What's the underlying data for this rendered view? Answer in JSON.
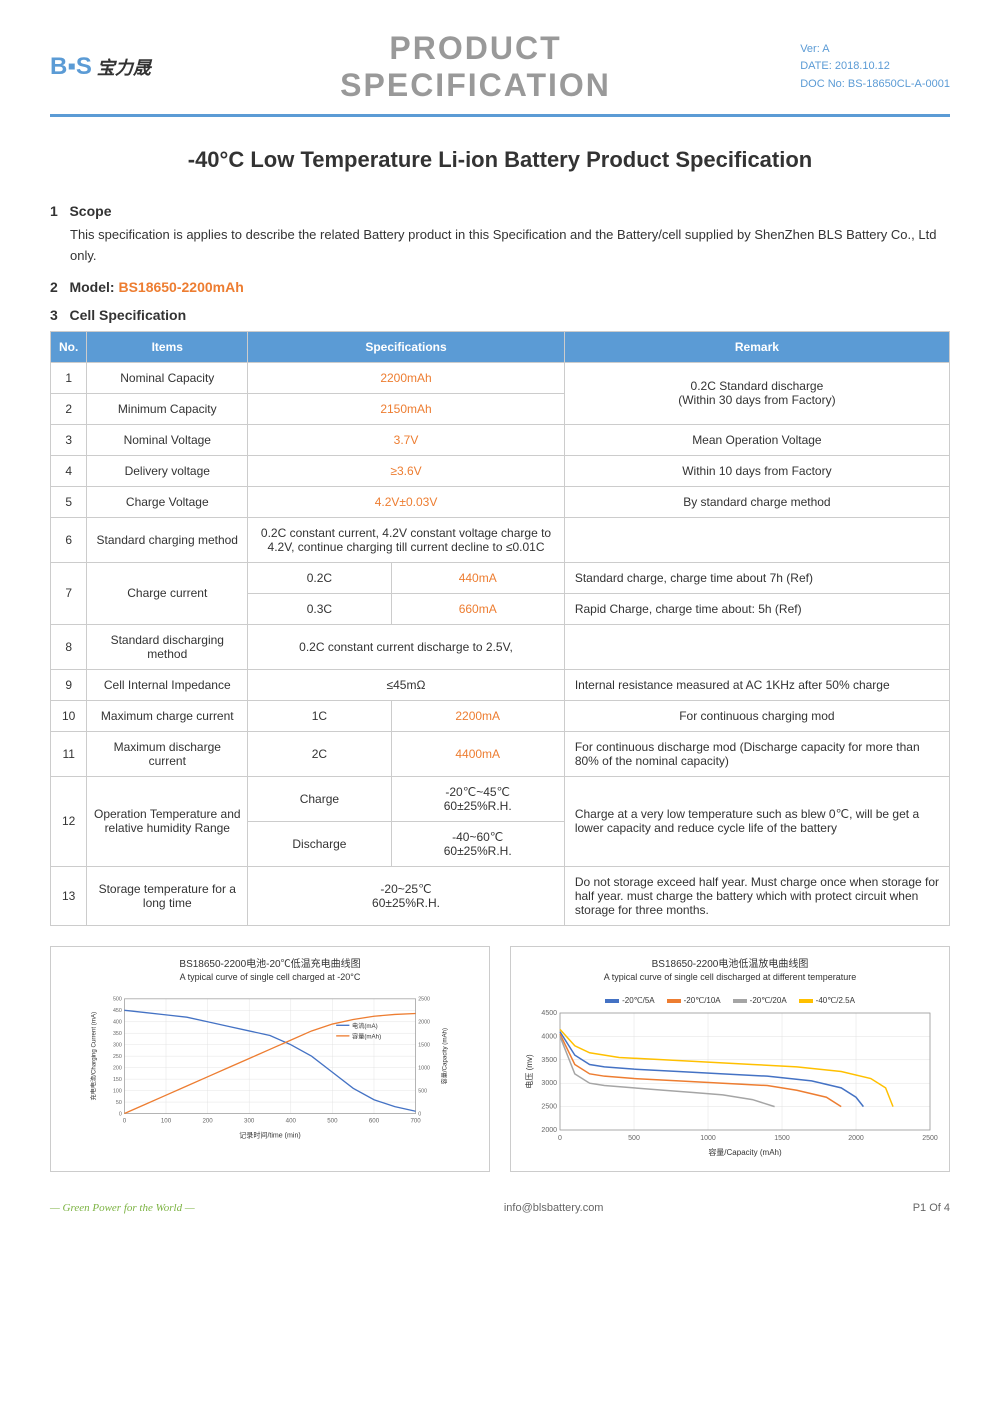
{
  "header": {
    "logo_text": "宝力晟",
    "logo_prefix": "BLS",
    "title_line1": "PRODUCT",
    "title_line2": "SPECIFICATION",
    "meta_ver": "Ver: A",
    "meta_date": "DATE: 2018.10.12",
    "meta_doc": "DOC No: BS-18650CL-A-0001"
  },
  "main_title": "-40°C Low Temperature Li-ion Battery Product Specification",
  "sections": {
    "scope": {
      "num": "1",
      "heading": "Scope",
      "text": "This specification is applies to describe the related Battery product in this Specification and the Battery/cell supplied by ShenZhen BLS Battery Co., Ltd only."
    },
    "model": {
      "num": "2",
      "heading": "Model:",
      "value": "BS18650-2200mAh"
    },
    "cellspec": {
      "num": "3",
      "heading": "Cell Specification"
    }
  },
  "table": {
    "headers": {
      "no": "No.",
      "items": "Items",
      "specs": "Specifications",
      "remark": "Remark"
    },
    "rows": [
      {
        "no": "1",
        "item": "Nominal Capacity",
        "spec": "2200mAh",
        "remark": "0.2C Standard discharge"
      },
      {
        "no": "2",
        "item": "Minimum Capacity",
        "spec": "2150mAh",
        "remark": "(Within 30 days from Factory)"
      },
      {
        "no": "3",
        "item": "Nominal Voltage",
        "spec": "3.7V",
        "remark": "Mean Operation Voltage"
      },
      {
        "no": "4",
        "item": "Delivery voltage",
        "spec": "≥3.6V",
        "remark": "Within 10 days from Factory"
      },
      {
        "no": "5",
        "item": "Charge Voltage",
        "spec": "4.2V±0.03V",
        "remark": "By standard charge method"
      },
      {
        "no": "6",
        "item": "Standard charging method",
        "spec": "0.2C constant current, 4.2V constant voltage charge to 4.2V, continue charging till current decline to ≤0.01C",
        "remark": ""
      },
      {
        "no": "7",
        "item": "Charge current",
        "spec_a": "0.2C",
        "spec_b": "440mA",
        "remark_a": "Standard charge, charge time about 7h (Ref)",
        "spec_c": "0.3C",
        "spec_d": "660mA",
        "remark_b": "Rapid Charge, charge time about: 5h (Ref)"
      },
      {
        "no": "8",
        "item": "Standard discharging method",
        "spec": "0.2C constant current discharge to 2.5V,",
        "remark": ""
      },
      {
        "no": "9",
        "item": "Cell Internal Impedance",
        "spec": "≤45mΩ",
        "remark": "Internal resistance measured at AC 1KHz after 50% charge"
      },
      {
        "no": "10",
        "item": "Maximum charge current",
        "spec_a": "1C",
        "spec_b": "2200mA",
        "remark": "For continuous charging mod"
      },
      {
        "no": "11",
        "item": "Maximum discharge current",
        "spec_a": "2C",
        "spec_b": "4400mA",
        "remark": "For continuous discharge mod (Discharge capacity for more than 80% of the nominal capacity)"
      },
      {
        "no": "12",
        "item": "Operation Temperature and relative humidity Range",
        "spec_a": "Charge",
        "spec_b": "-20℃~45℃\n60±25%R.H.",
        "spec_c": "Discharge",
        "spec_d": "-40~60℃\n60±25%R.H.",
        "remark": "Charge at a very low temperature such as blew 0℃, will be get a lower capacity and reduce cycle life of the battery"
      },
      {
        "no": "13",
        "item": "Storage temperature for a long time",
        "spec": "-20~25℃\n60±25%R.H.",
        "remark": "Do not storage exceed half year. Must charge once when storage for half year. must charge the battery which with protect circuit when storage for three months."
      }
    ]
  },
  "chart1": {
    "title_cn": "BS18650-2200电池-20℃低温充电曲线图",
    "title_en": "A typical curve of single cell charged at -20°C",
    "xlabel": "记录时间/time (min)",
    "ylabel_left": "充电电流/Charging Current (mA)",
    "ylabel_right": "容量/Capacity (mAh)",
    "x_range": [
      0,
      700
    ],
    "x_ticks": [
      0,
      100,
      200,
      300,
      400,
      500,
      600,
      700
    ],
    "y_left_range": [
      0,
      500
    ],
    "y_left_ticks": [
      0,
      50,
      100,
      150,
      200,
      250,
      300,
      350,
      400,
      450,
      500
    ],
    "y_right_range": [
      0,
      2500
    ],
    "y_right_ticks": [
      0,
      500,
      1000,
      1500,
      2000,
      2500
    ],
    "series": [
      {
        "name": "电流(mA)",
        "color": "#4472c4",
        "points": [
          [
            0,
            450
          ],
          [
            50,
            440
          ],
          [
            100,
            430
          ],
          [
            150,
            420
          ],
          [
            200,
            400
          ],
          [
            250,
            380
          ],
          [
            300,
            360
          ],
          [
            350,
            340
          ],
          [
            400,
            300
          ],
          [
            450,
            250
          ],
          [
            500,
            180
          ],
          [
            550,
            110
          ],
          [
            600,
            60
          ],
          [
            650,
            30
          ],
          [
            700,
            10
          ]
        ]
      },
      {
        "name": "容量(mAh)",
        "color": "#ed7d31",
        "points": [
          [
            0,
            0
          ],
          [
            50,
            200
          ],
          [
            100,
            400
          ],
          [
            150,
            600
          ],
          [
            200,
            800
          ],
          [
            250,
            1000
          ],
          [
            300,
            1200
          ],
          [
            350,
            1400
          ],
          [
            400,
            1600
          ],
          [
            450,
            1800
          ],
          [
            500,
            1950
          ],
          [
            550,
            2050
          ],
          [
            600,
            2120
          ],
          [
            650,
            2160
          ],
          [
            700,
            2180
          ]
        ]
      }
    ],
    "background_color": "#ffffff",
    "grid_color": "#e0e0e0"
  },
  "chart2": {
    "title_cn": "BS18650-2200电池低温放电曲线图",
    "title_en": "A typical curve of single cell discharged at different temperature",
    "xlabel": "容量/Capacity (mAh)",
    "ylabel": "电压 (mv)",
    "x_range": [
      0,
      2500
    ],
    "x_ticks": [
      0,
      500,
      1000,
      1500,
      2000,
      2500
    ],
    "y_range": [
      2000,
      4500
    ],
    "y_ticks": [
      2000,
      2500,
      3000,
      3500,
      4000,
      4500
    ],
    "series": [
      {
        "name": "-20℃/5A",
        "color": "#4472c4",
        "points": [
          [
            0,
            4100
          ],
          [
            100,
            3600
          ],
          [
            200,
            3400
          ],
          [
            300,
            3350
          ],
          [
            500,
            3300
          ],
          [
            800,
            3250
          ],
          [
            1100,
            3200
          ],
          [
            1400,
            3150
          ],
          [
            1700,
            3050
          ],
          [
            1900,
            2900
          ],
          [
            2000,
            2700
          ],
          [
            2050,
            2500
          ]
        ]
      },
      {
        "name": "-20℃/10A",
        "color": "#ed7d31",
        "points": [
          [
            0,
            4050
          ],
          [
            100,
            3400
          ],
          [
            200,
            3200
          ],
          [
            300,
            3150
          ],
          [
            500,
            3100
          ],
          [
            800,
            3050
          ],
          [
            1100,
            3000
          ],
          [
            1400,
            2950
          ],
          [
            1600,
            2850
          ],
          [
            1800,
            2700
          ],
          [
            1900,
            2500
          ]
        ]
      },
      {
        "name": "-20℃/20A",
        "color": "#a5a5a5",
        "points": [
          [
            0,
            4000
          ],
          [
            100,
            3200
          ],
          [
            200,
            3000
          ],
          [
            300,
            2950
          ],
          [
            500,
            2900
          ],
          [
            700,
            2850
          ],
          [
            900,
            2800
          ],
          [
            1100,
            2750
          ],
          [
            1300,
            2650
          ],
          [
            1450,
            2500
          ]
        ]
      },
      {
        "name": "-40℃/2.5A",
        "color": "#ffc000",
        "points": [
          [
            0,
            4150
          ],
          [
            100,
            3800
          ],
          [
            200,
            3650
          ],
          [
            400,
            3550
          ],
          [
            700,
            3500
          ],
          [
            1000,
            3450
          ],
          [
            1300,
            3400
          ],
          [
            1600,
            3350
          ],
          [
            1900,
            3250
          ],
          [
            2100,
            3100
          ],
          [
            2200,
            2900
          ],
          [
            2250,
            2500
          ]
        ]
      }
    ],
    "background_color": "#ffffff",
    "grid_color": "#e0e0e0"
  },
  "footer": {
    "left": "— Green Power for the World —",
    "center": "info@blsbattery.com",
    "right": "P1 Of 4"
  }
}
